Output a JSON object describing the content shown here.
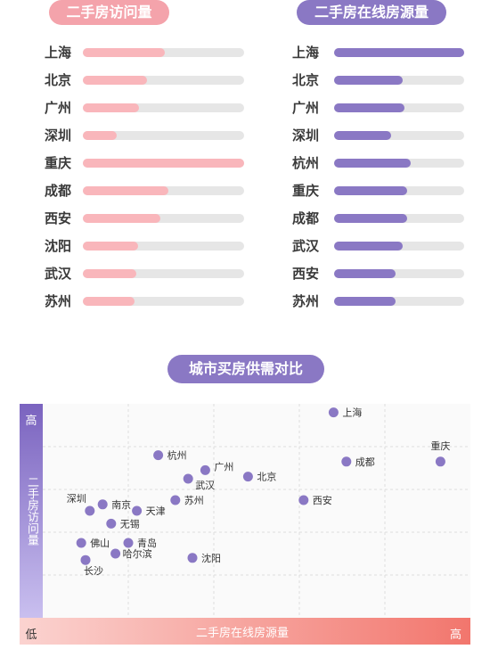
{
  "left_panel": {
    "title": "二手房访问量",
    "bar_color": "#f9b6bb",
    "items": [
      {
        "city": "上海",
        "value": 0.51
      },
      {
        "city": "北京",
        "value": 0.4
      },
      {
        "city": "广州",
        "value": 0.35
      },
      {
        "city": "深圳",
        "value": 0.21
      },
      {
        "city": "重庆",
        "value": 1.0
      },
      {
        "city": "成都",
        "value": 0.53
      },
      {
        "city": "西安",
        "value": 0.48
      },
      {
        "city": "沈阳",
        "value": 0.34
      },
      {
        "city": "武汉",
        "value": 0.33
      },
      {
        "city": "苏州",
        "value": 0.32
      }
    ]
  },
  "right_panel": {
    "title": "二手房在线房源量",
    "bar_color": "#8a78c4",
    "items": [
      {
        "city": "上海",
        "value": 1.0
      },
      {
        "city": "北京",
        "value": 0.53
      },
      {
        "city": "广州",
        "value": 0.54
      },
      {
        "city": "深圳",
        "value": 0.44
      },
      {
        "city": "杭州",
        "value": 0.59
      },
      {
        "city": "重庆",
        "value": 0.56
      },
      {
        "city": "成都",
        "value": 0.56
      },
      {
        "city": "武汉",
        "value": 0.53
      },
      {
        "city": "西安",
        "value": 0.47
      },
      {
        "city": "苏州",
        "value": 0.47
      }
    ]
  },
  "scatter_title": "城市买房供需对比",
  "chart_data": {
    "type": "scatter",
    "xlabel": "二手房在线房源量",
    "ylabel": "二手房访问量",
    "x_low_label": "低",
    "x_high_label": "高",
    "y_high_label": "高",
    "y_low_label": "低",
    "xlim": [
      0,
      100
    ],
    "ylim": [
      0,
      100
    ],
    "point_color": "#8a78c4",
    "points": [
      {
        "name": "上海",
        "x": 68,
        "y": 96
      },
      {
        "name": "重庆",
        "x": 93,
        "y": 73
      },
      {
        "name": "成都",
        "x": 71,
        "y": 73
      },
      {
        "name": "北京",
        "x": 48,
        "y": 66
      },
      {
        "name": "杭州",
        "x": 27,
        "y": 76
      },
      {
        "name": "广州",
        "x": 38,
        "y": 69
      },
      {
        "name": "武汉",
        "x": 34,
        "y": 65
      },
      {
        "name": "西安",
        "x": 61,
        "y": 55
      },
      {
        "name": "苏州",
        "x": 31,
        "y": 55
      },
      {
        "name": "深圳",
        "x": 11,
        "y": 50
      },
      {
        "name": "南京",
        "x": 14,
        "y": 53
      },
      {
        "name": "天津",
        "x": 22,
        "y": 50
      },
      {
        "name": "无锡",
        "x": 16,
        "y": 44
      },
      {
        "name": "佛山",
        "x": 9,
        "y": 35
      },
      {
        "name": "青岛",
        "x": 20,
        "y": 35
      },
      {
        "name": "哈尔滨",
        "x": 17,
        "y": 30
      },
      {
        "name": "长沙",
        "x": 10,
        "y": 27
      },
      {
        "name": "沈阳",
        "x": 35,
        "y": 28
      }
    ]
  }
}
